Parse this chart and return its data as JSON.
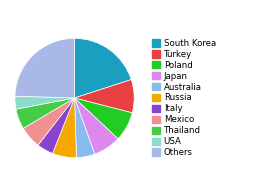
{
  "labels": [
    "South Korea",
    "Turkey",
    "Poland",
    "Japan",
    "Australia",
    "Russia",
    "Italy",
    "Mexico",
    "Thailand",
    "USA",
    "Others"
  ],
  "values": [
    20.0,
    9.0,
    8.0,
    7.5,
    5.0,
    6.5,
    4.5,
    6.0,
    5.5,
    3.5,
    24.5
  ],
  "colors": [
    "#1a9fc0",
    "#e84040",
    "#22cc22",
    "#dd88ee",
    "#88bbee",
    "#f5a800",
    "#8844cc",
    "#f09090",
    "#44cc44",
    "#88ddcc",
    "#aab8e8"
  ],
  "legend_fontsize": 6.2,
  "figsize": [
    2.57,
    1.96
  ],
  "dpi": 100,
  "startangle": 90,
  "edgecolor": "white",
  "linewidth": 0.5
}
